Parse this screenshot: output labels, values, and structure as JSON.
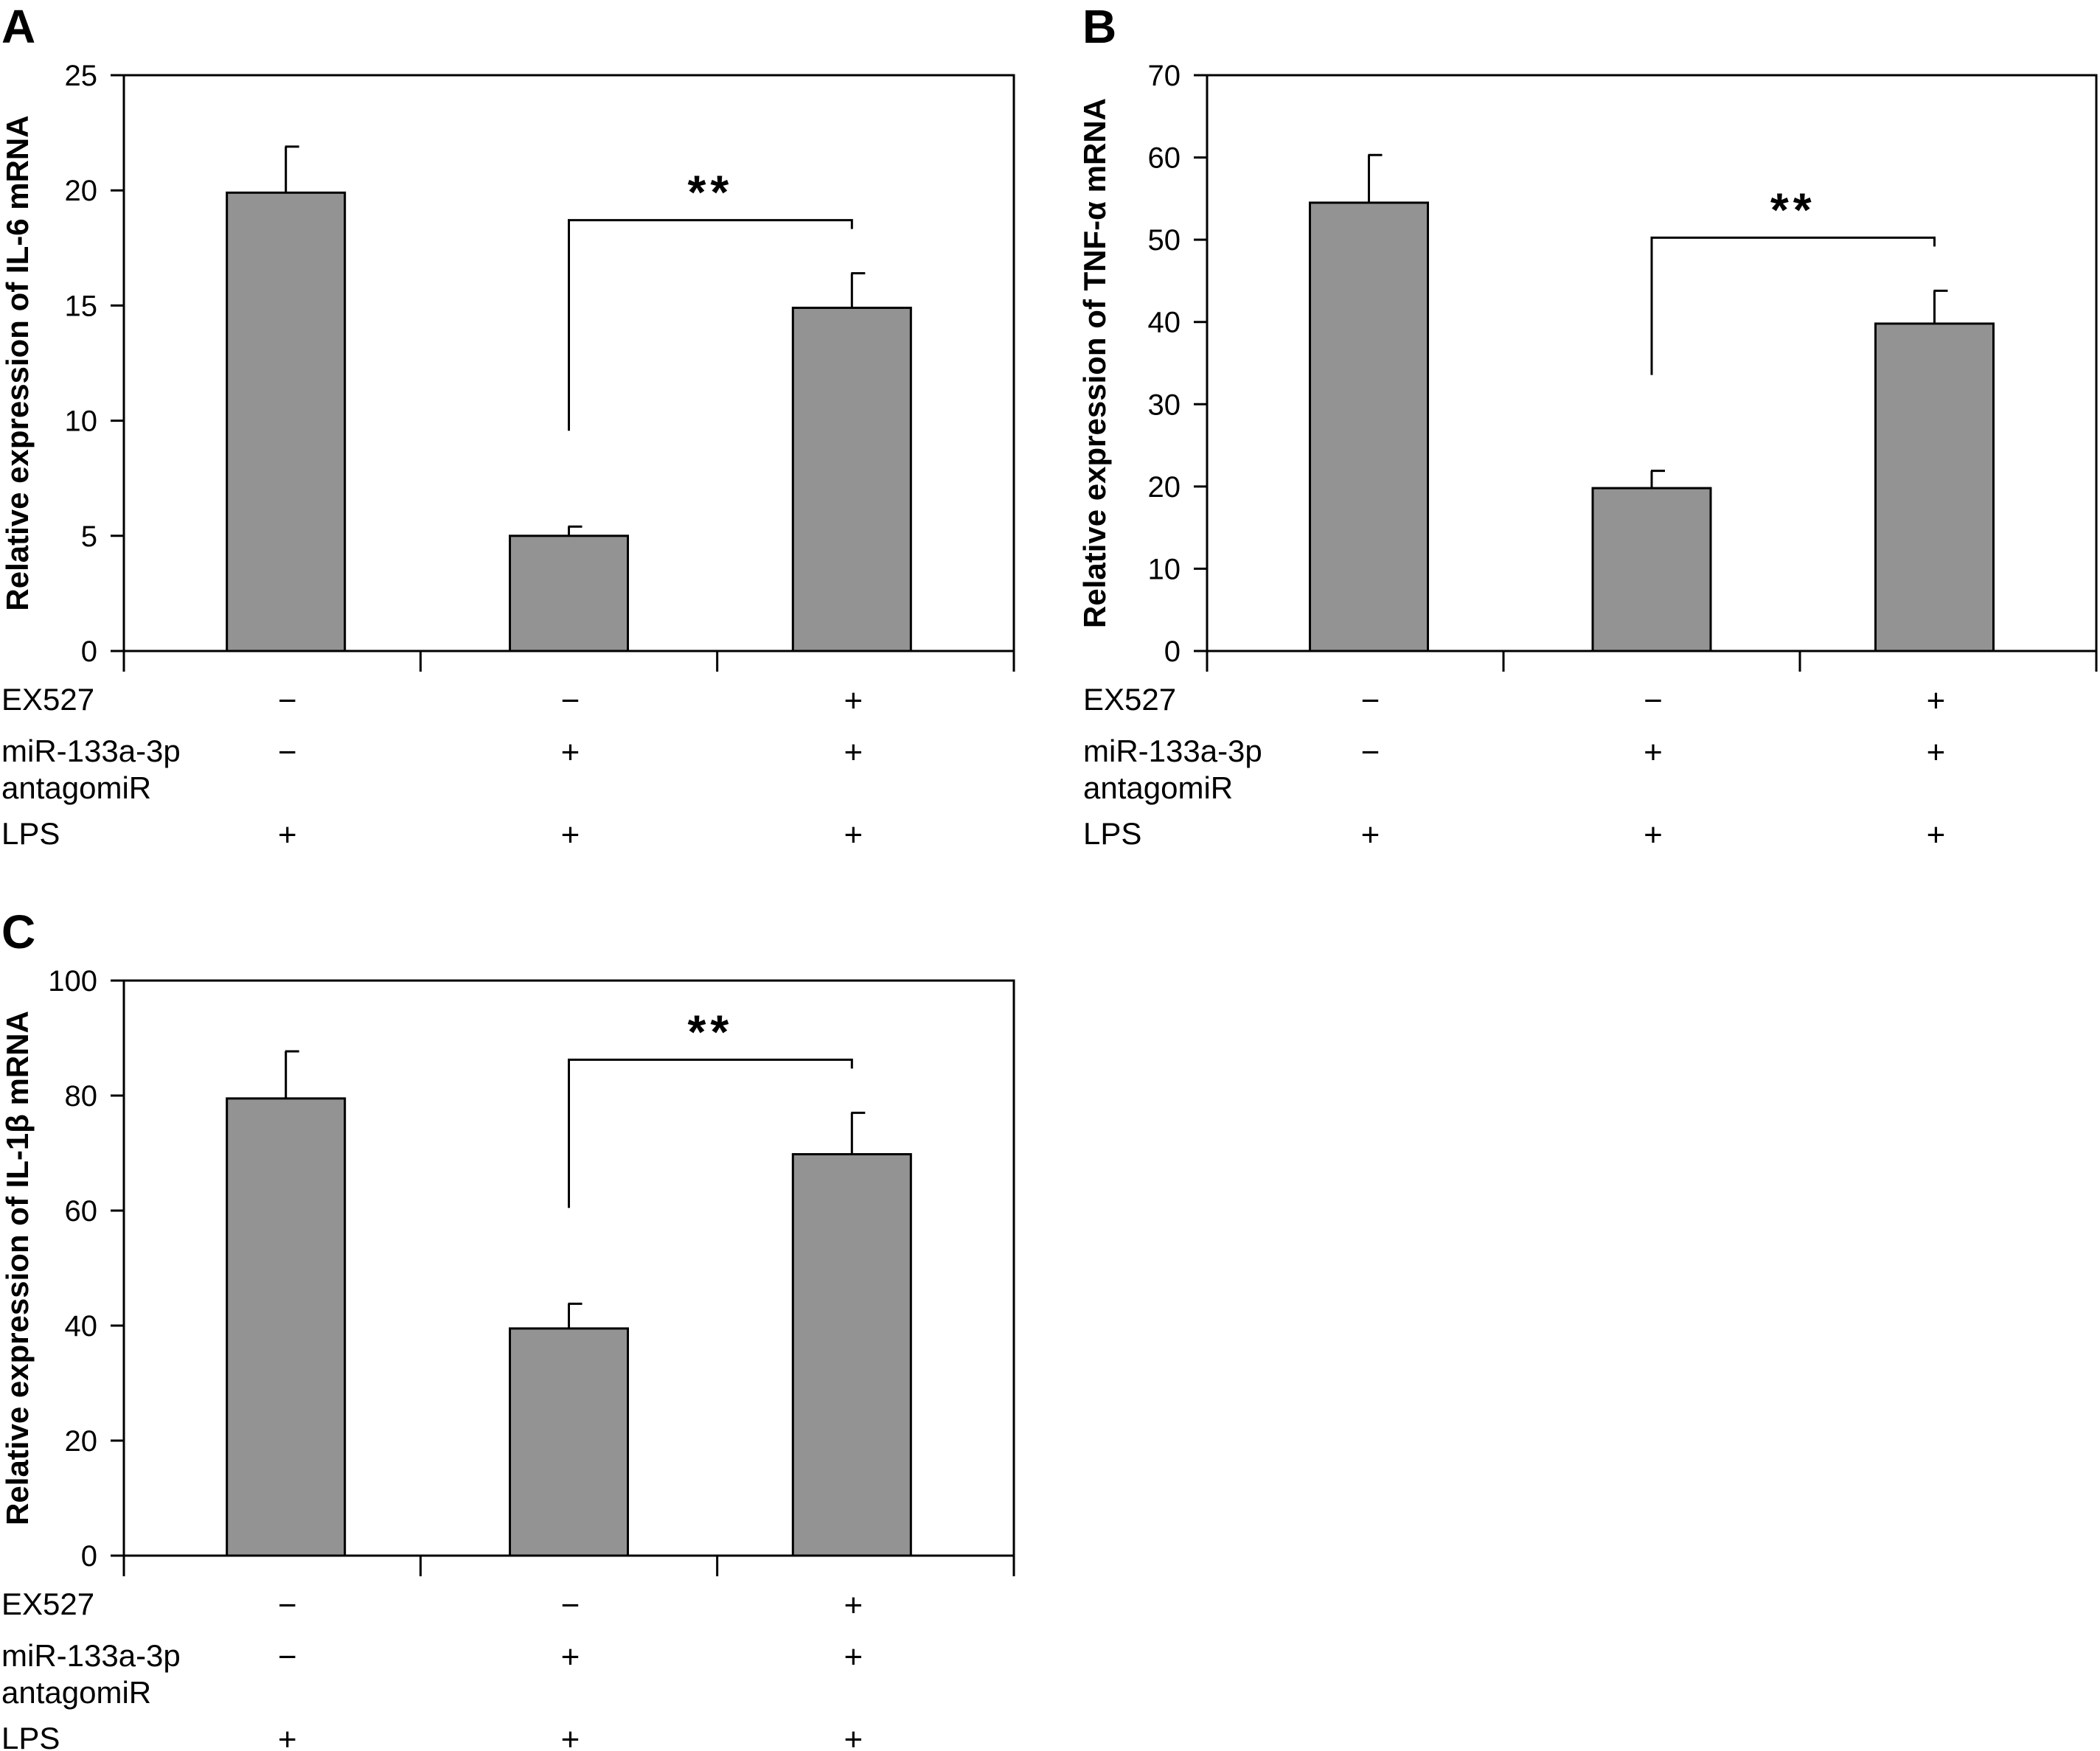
{
  "chart_data": [
    {
      "panel": "A",
      "type": "bar",
      "ylabel": "Relative expression of IL-6 mRNA",
      "ylim": [
        0,
        25
      ],
      "yticks": [
        0,
        5,
        10,
        15,
        20,
        25
      ],
      "values": [
        19.9,
        5.0,
        14.9
      ],
      "errors": [
        2.0,
        0.4,
        1.5
      ],
      "bar_color": "#939393",
      "significance": {
        "from": 1,
        "to": 2,
        "label": "**"
      }
    },
    {
      "panel": "B",
      "type": "bar",
      "ylabel": "Relative expression of TNF-α mRNA",
      "ylim": [
        0,
        70
      ],
      "yticks": [
        0,
        10,
        20,
        30,
        40,
        50,
        60,
        70
      ],
      "values": [
        54.5,
        19.8,
        39.8
      ],
      "errors": [
        5.8,
        2.1,
        4.0
      ],
      "bar_color": "#939393",
      "significance": {
        "from": 1,
        "to": 2,
        "label": "**"
      }
    },
    {
      "panel": "C",
      "type": "bar",
      "ylabel": "Relative expression of IL-1β mRNA",
      "ylim": [
        0,
        100
      ],
      "yticks": [
        0,
        20,
        40,
        60,
        80,
        100
      ],
      "values": [
        79.5,
        39.5,
        69.8
      ],
      "errors": [
        8.2,
        4.3,
        7.2
      ],
      "bar_color": "#939393",
      "significance": {
        "from": 1,
        "to": 2,
        "label": "**"
      }
    }
  ],
  "factors": [
    {
      "label_lines": [
        "EX527"
      ],
      "signs": [
        "−",
        "−",
        "+"
      ]
    },
    {
      "label_lines": [
        "miR-133a-3p",
        "antagomiR"
      ],
      "signs": [
        "−",
        "+",
        "+"
      ]
    },
    {
      "label_lines": [
        "LPS"
      ],
      "signs": [
        "+",
        "+",
        "+"
      ]
    }
  ]
}
